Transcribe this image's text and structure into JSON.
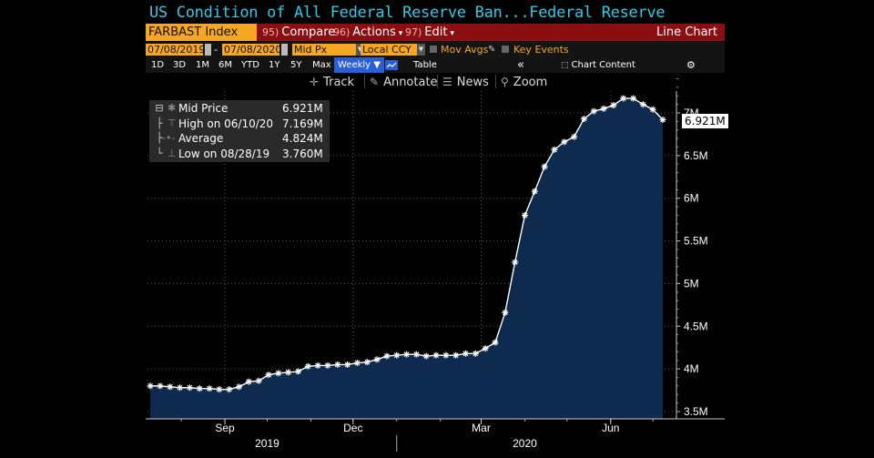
{
  "header": {
    "title": "US Condition of All Federal Reserve Ban...Federal Reserve",
    "ticker": "FARBAST Index",
    "menu": [
      {
        "num": "95)",
        "label": "Compare"
      },
      {
        "num": "96)",
        "label": "Actions"
      },
      {
        "num": "97)",
        "label": "Edit"
      }
    ],
    "chart_type_label": "Line Chart"
  },
  "controls": {
    "start_date": "07/08/2019",
    "dash": "-",
    "end_date": "07/08/2020",
    "price_field": "Mid Px",
    "currency": "Local CCY",
    "mov_avgs": "Mov Avgs",
    "key_events": "Key Events"
  },
  "timebar": {
    "ranges": [
      "1D",
      "3D",
      "1M",
      "6M",
      "YTD",
      "1Y",
      "5Y",
      "Max"
    ],
    "frequency": "Weekly ▼",
    "table": "Table",
    "collapse": "«",
    "chart_content": "Chart Content",
    "gear": "⚙"
  },
  "annotation_bar": {
    "track": "Track",
    "annotate": "Annotate",
    "news": "News",
    "zoom": "Zoom"
  },
  "legend": [
    {
      "symbol": "✱",
      "label": "Mid Price",
      "value": "6.921M"
    },
    {
      "symbol": "⊤",
      "label": "High on 06/10/20",
      "value": "7.169M"
    },
    {
      "symbol": "-•-",
      "label": "Average",
      "value": "4.824M"
    },
    {
      "symbol": "⊥",
      "label": "Low on 08/28/19",
      "value": "3.760M"
    }
  ],
  "last_price_tag": "6.921M",
  "colors": {
    "background": "#000000",
    "area_fill": "#0e2a4e",
    "line": "#ffffff",
    "title": "#33c8e6",
    "toolbar_red": "#8a0e12",
    "orange_field": "#f5a623",
    "active_blue": "#2a5fd6"
  },
  "chart_data": {
    "type": "area",
    "title": "",
    "xlabel": "",
    "ylabel": "",
    "x_ticks": [
      "Sep",
      "Dec",
      "Mar",
      "Jun"
    ],
    "year_labels": [
      "2019",
      "2020"
    ],
    "y_ticks": [
      "3.5M",
      "4M",
      "4.5M",
      "5M",
      "5.5M",
      "6M",
      "6.5M",
      "7M"
    ],
    "ylim": [
      3.5,
      7.45
    ],
    "grid": true,
    "series": [
      {
        "name": "Mid Price",
        "x": [
          "2019-07-10",
          "2019-07-17",
          "2019-07-24",
          "2019-07-31",
          "2019-08-07",
          "2019-08-14",
          "2019-08-21",
          "2019-08-28",
          "2019-09-04",
          "2019-09-11",
          "2019-09-18",
          "2019-09-25",
          "2019-10-02",
          "2019-10-09",
          "2019-10-16",
          "2019-10-23",
          "2019-10-30",
          "2019-11-06",
          "2019-11-13",
          "2019-11-20",
          "2019-11-27",
          "2019-12-04",
          "2019-12-11",
          "2019-12-18",
          "2019-12-25",
          "2020-01-01",
          "2020-01-08",
          "2020-01-15",
          "2020-01-22",
          "2020-01-29",
          "2020-02-05",
          "2020-02-12",
          "2020-02-19",
          "2020-02-26",
          "2020-03-04",
          "2020-03-11",
          "2020-03-18",
          "2020-03-25",
          "2020-04-01",
          "2020-04-08",
          "2020-04-15",
          "2020-04-22",
          "2020-04-29",
          "2020-05-06",
          "2020-05-13",
          "2020-05-20",
          "2020-05-27",
          "2020-06-03",
          "2020-06-10",
          "2020-06-17",
          "2020-06-24",
          "2020-07-01",
          "2020-07-08"
        ],
        "values": [
          3.8,
          3.8,
          3.79,
          3.78,
          3.78,
          3.77,
          3.77,
          3.76,
          3.76,
          3.79,
          3.85,
          3.86,
          3.93,
          3.95,
          3.96,
          3.97,
          4.03,
          4.04,
          4.04,
          4.05,
          4.05,
          4.07,
          4.08,
          4.11,
          4.15,
          4.16,
          4.17,
          4.17,
          4.15,
          4.16,
          4.16,
          4.16,
          4.18,
          4.18,
          4.24,
          4.31,
          4.66,
          5.25,
          5.8,
          6.08,
          6.37,
          6.57,
          6.66,
          6.72,
          6.93,
          7.02,
          7.05,
          7.09,
          7.17,
          7.17,
          7.1,
          7.04,
          6.92
        ]
      }
    ],
    "stats": {
      "last": 6.921,
      "high": 7.169,
      "high_date": "06/10/20",
      "average": 4.824,
      "low": 3.76,
      "low_date": "08/28/19"
    }
  }
}
